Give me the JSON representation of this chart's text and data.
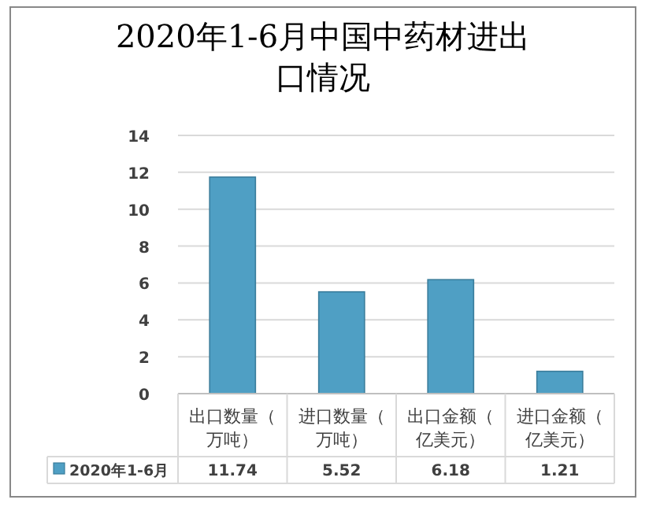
{
  "chart_data": {
    "type": "bar",
    "title": "2020年1-6月中国中药材进出口情况",
    "categories": [
      "出口数量（万吨）",
      "进口数量（万吨）",
      "出口金额（亿美元）",
      "进口金额（亿美元）"
    ],
    "series": [
      {
        "name": "2020年1-6月",
        "color": "#4f9fc4",
        "values": [
          11.74,
          5.52,
          6.18,
          1.21
        ]
      }
    ],
    "ylim": [
      0,
      14
    ],
    "yticks": [
      0,
      2,
      4,
      6,
      8,
      10,
      12,
      14
    ],
    "grid": "y",
    "legend": "bottom",
    "data_labels": true
  }
}
